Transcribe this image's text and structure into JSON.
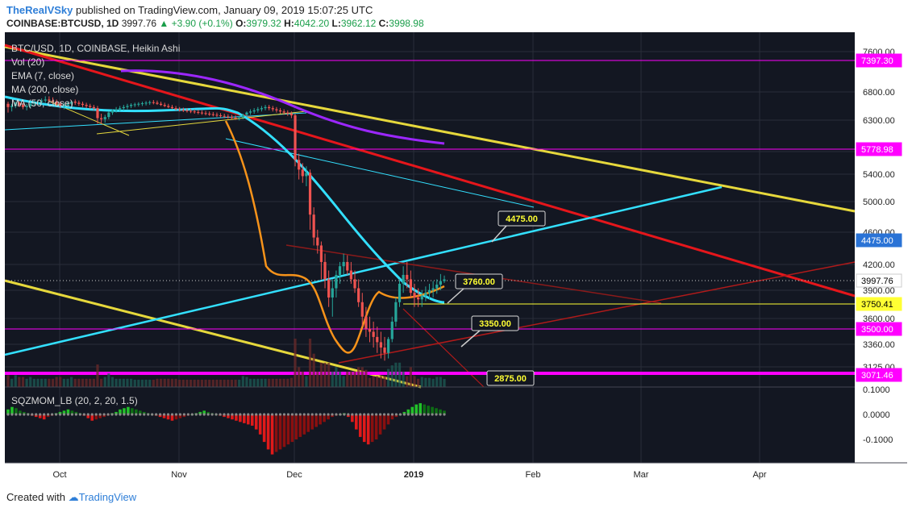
{
  "header": {
    "author": "TheRealVSky",
    "published_text": "published on TradingView.com, January 09, 2019 15:07:25 UTC",
    "symbol_line": "COINBASE:BTCUSD, 1D",
    "price": "3997.76",
    "change": "+3.90 (+0.1%)",
    "o_label": "O:",
    "o": "3979.32",
    "h_label": "H:",
    "h": "4042.20",
    "l_label": "L:",
    "l": "3962.12",
    "c_label": "C:",
    "c": "3998.98"
  },
  "legend": {
    "title": "BTC/USD, 1D, COINBASE, Heikin Ashi",
    "vol": "Vol (20)",
    "ema": "EMA (7, close)",
    "ma200": "MA (200, close)",
    "ma50": "MA (50, close)"
  },
  "oscillator": {
    "label": "SQZMOM_LB (20, 2, 20, 1.5)"
  },
  "footer": {
    "created_with": "Created with",
    "brand": "TradingView"
  },
  "colors": {
    "background": "#131722",
    "grid": "#2a2e39",
    "bull": "#26a69a",
    "bear": "#ef5350",
    "ema": "#f7931a",
    "ma200": "#9c27ff",
    "ma50": "#33e0ff",
    "yellow_line": "#e6d83c",
    "red_line": "#e5161b",
    "magenta": "#ff00ff"
  },
  "chart_data": {
    "type": "candlestick",
    "symbol": "BTC/USD",
    "y_ticks": [
      "7600.00",
      "6800.00",
      "6300.00",
      "5800.00",
      "5400.00",
      "5000.00",
      "4600.00",
      "4200.00",
      "3900.00",
      "3600.00",
      "3360.00",
      "3125.00"
    ],
    "x_ticks": [
      "Oct",
      "Nov",
      "Dec",
      "2019",
      "Feb",
      "Mar",
      "Apr"
    ],
    "price_tags": [
      {
        "label": "7397.30",
        "value": 7397.3,
        "color": "#ff00ff"
      },
      {
        "label": "5778.98",
        "value": 5778.98,
        "color": "#ff00ff"
      },
      {
        "label": "4475.00",
        "value": 4475,
        "color": "#2a73d6"
      },
      {
        "label": "3997.76",
        "value": 3997.76,
        "color": "#ffffff"
      },
      {
        "label": "3750.41",
        "value": 3750.41,
        "color": "#ffff33"
      },
      {
        "label": "3500.00",
        "value": 3500,
        "color": "#ff00ff"
      },
      {
        "label": "3071.46",
        "value": 3071.46,
        "color": "#ff00ff"
      }
    ],
    "annotations": [
      "4475.00",
      "3760.00",
      "3350.00",
      "2875.00"
    ],
    "candles": [
      [
        6560,
        6600,
        6400,
        6500
      ],
      [
        6500,
        6560,
        6420,
        6520
      ],
      [
        6520,
        6600,
        6480,
        6580
      ],
      [
        6580,
        6610,
        6500,
        6540
      ],
      [
        6540,
        6580,
        6460,
        6500
      ],
      [
        6500,
        6560,
        6440,
        6520
      ],
      [
        6520,
        6580,
        6480,
        6560
      ],
      [
        6560,
        6620,
        6520,
        6580
      ],
      [
        6580,
        6640,
        6540,
        6600
      ],
      [
        6600,
        6660,
        6560,
        6620
      ],
      [
        6620,
        6700,
        6580,
        6640
      ],
      [
        6640,
        6700,
        6580,
        6620
      ],
      [
        6620,
        6680,
        6560,
        6600
      ],
      [
        6600,
        6640,
        6520,
        6560
      ],
      [
        6560,
        6600,
        6480,
        6520
      ],
      [
        6520,
        6580,
        6460,
        6540
      ],
      [
        6540,
        6600,
        6500,
        6560
      ],
      [
        6560,
        6620,
        6520,
        6600
      ],
      [
        6600,
        6640,
        6540,
        6580
      ],
      [
        6580,
        6620,
        6520,
        6560
      ],
      [
        6560,
        6600,
        6500,
        6540
      ],
      [
        6540,
        6580,
        6480,
        6520
      ],
      [
        6520,
        6560,
        6460,
        6500
      ],
      [
        6500,
        6540,
        6440,
        6480
      ],
      [
        6480,
        6520,
        6200,
        6300
      ],
      [
        6300,
        6380,
        6200,
        6280
      ],
      [
        6280,
        6360,
        6220,
        6320
      ],
      [
        6320,
        6420,
        6280,
        6400
      ],
      [
        6400,
        6460,
        6360,
        6440
      ],
      [
        6440,
        6500,
        6400,
        6460
      ],
      [
        6460,
        6520,
        6420,
        6480
      ],
      [
        6480,
        6540,
        6440,
        6500
      ],
      [
        6500,
        6560,
        6460,
        6520
      ],
      [
        6520,
        6570,
        6480,
        6540
      ],
      [
        6540,
        6580,
        6500,
        6550
      ],
      [
        6550,
        6590,
        6510,
        6560
      ],
      [
        6560,
        6600,
        6520,
        6570
      ],
      [
        6570,
        6610,
        6530,
        6580
      ],
      [
        6580,
        6620,
        6540,
        6590
      ],
      [
        6590,
        6630,
        6550,
        6580
      ],
      [
        6580,
        6620,
        6540,
        6560
      ],
      [
        6560,
        6600,
        6520,
        6540
      ],
      [
        6540,
        6580,
        6500,
        6520
      ],
      [
        6520,
        6560,
        6480,
        6500
      ],
      [
        6500,
        6540,
        6460,
        6480
      ],
      [
        6480,
        6520,
        6440,
        6460
      ],
      [
        6460,
        6500,
        6420,
        6450
      ],
      [
        6450,
        6490,
        6410,
        6440
      ],
      [
        6440,
        6480,
        6400,
        6430
      ],
      [
        6430,
        6470,
        6390,
        6420
      ],
      [
        6420,
        6460,
        6380,
        6410
      ],
      [
        6410,
        6450,
        6370,
        6400
      ],
      [
        6400,
        6440,
        6360,
        6390
      ],
      [
        6390,
        6430,
        6350,
        6380
      ],
      [
        6380,
        6420,
        6340,
        6370
      ],
      [
        6370,
        6410,
        6330,
        6360
      ],
      [
        6360,
        6400,
        6320,
        6350
      ],
      [
        6350,
        6390,
        6310,
        6340
      ],
      [
        6340,
        6380,
        6300,
        6330
      ],
      [
        6330,
        6370,
        6290,
        6320
      ],
      [
        6320,
        6360,
        6280,
        6310
      ],
      [
        6310,
        6350,
        6270,
        6300
      ],
      [
        6300,
        6340,
        6260,
        6310
      ],
      [
        6310,
        6380,
        6280,
        6360
      ],
      [
        6360,
        6420,
        6320,
        6400
      ],
      [
        6400,
        6460,
        6360,
        6420
      ],
      [
        6420,
        6480,
        6380,
        6440
      ],
      [
        6440,
        6500,
        6400,
        6460
      ],
      [
        6460,
        6520,
        6420,
        6480
      ],
      [
        6480,
        6540,
        6440,
        6500
      ],
      [
        6500,
        6540,
        6440,
        6480
      ],
      [
        6480,
        6520,
        6420,
        6460
      ],
      [
        6460,
        6500,
        6400,
        6440
      ],
      [
        6440,
        6480,
        6380,
        6420
      ],
      [
        6420,
        6460,
        6360,
        6400
      ],
      [
        6400,
        6440,
        6340,
        6380
      ],
      [
        6380,
        6420,
        6300,
        6350
      ],
      [
        6350,
        6380,
        5500,
        5600
      ],
      [
        5600,
        5700,
        5300,
        5450
      ],
      [
        5450,
        5550,
        5250,
        5350
      ],
      [
        5350,
        5500,
        5200,
        5400
      ],
      [
        5400,
        5450,
        4600,
        4800
      ],
      [
        4800,
        4900,
        4400,
        4500
      ],
      [
        4500,
        4600,
        4300,
        4400
      ],
      [
        4400,
        4450,
        4000,
        4200
      ],
      [
        4200,
        4300,
        3900,
        4000
      ],
      [
        4000,
        4100,
        3700,
        3800
      ],
      [
        3800,
        4000,
        3600,
        3900
      ],
      [
        3900,
        4100,
        3800,
        4050
      ],
      [
        4050,
        4200,
        3950,
        4150
      ],
      [
        4150,
        4300,
        4050,
        4200
      ],
      [
        4200,
        4280,
        4050,
        4100
      ],
      [
        4100,
        4200,
        3950,
        4000
      ],
      [
        4000,
        4100,
        3850,
        3900
      ],
      [
        3900,
        4000,
        3700,
        3750
      ],
      [
        3750,
        3850,
        3500,
        3600
      ],
      [
        3600,
        3700,
        3400,
        3480
      ],
      [
        3480,
        3600,
        3350,
        3450
      ],
      [
        3450,
        3550,
        3300,
        3400
      ],
      [
        3400,
        3500,
        3250,
        3350
      ],
      [
        3350,
        3450,
        3200,
        3300
      ],
      [
        3300,
        3400,
        3180,
        3250
      ],
      [
        3250,
        3400,
        3200,
        3380
      ],
      [
        3380,
        3600,
        3350,
        3550
      ],
      [
        3550,
        3800,
        3500,
        3750
      ],
      [
        3750,
        4000,
        3700,
        3950
      ],
      [
        3950,
        4150,
        3850,
        4050
      ],
      [
        4050,
        4200,
        3900,
        4000
      ],
      [
        4000,
        4100,
        3800,
        3850
      ],
      [
        3850,
        3950,
        3700,
        3800
      ],
      [
        3800,
        3900,
        3700,
        3780
      ],
      [
        3780,
        3880,
        3700,
        3820
      ],
      [
        3820,
        3920,
        3760,
        3850
      ],
      [
        3850,
        3950,
        3780,
        3880
      ],
      [
        3880,
        3980,
        3800,
        3900
      ],
      [
        3900,
        4000,
        3840,
        3940
      ],
      [
        3940,
        4060,
        3880,
        3980
      ],
      [
        3980,
        4042,
        3960,
        3999
      ]
    ],
    "squeeze_momentum": [
      20,
      30,
      25,
      15,
      10,
      5,
      -5,
      -10,
      -15,
      -20,
      -10,
      -5,
      5,
      10,
      15,
      20,
      15,
      10,
      5,
      -5,
      -15,
      -25,
      -20,
      -15,
      -10,
      -5,
      5,
      10,
      20,
      25,
      30,
      25,
      20,
      15,
      10,
      5,
      0,
      -5,
      -10,
      -15,
      -20,
      -25,
      -20,
      -15,
      -10,
      -5,
      0,
      5,
      10,
      15,
      10,
      5,
      0,
      -5,
      -10,
      -15,
      -20,
      -25,
      -30,
      -35,
      -40,
      -45,
      -60,
      -80,
      -110,
      -140,
      -160,
      -150,
      -140,
      -130,
      -120,
      -110,
      -100,
      -90,
      -80,
      -70,
      -60,
      -50,
      -40,
      -30,
      -20,
      -10,
      -5,
      0,
      5,
      -10,
      -30,
      -60,
      -90,
      -110,
      -120,
      -110,
      -100,
      -80,
      -60,
      -40,
      -20,
      -10,
      0,
      10,
      20,
      30,
      40,
      45,
      40,
      35,
      30,
      25,
      20,
      15
    ]
  }
}
